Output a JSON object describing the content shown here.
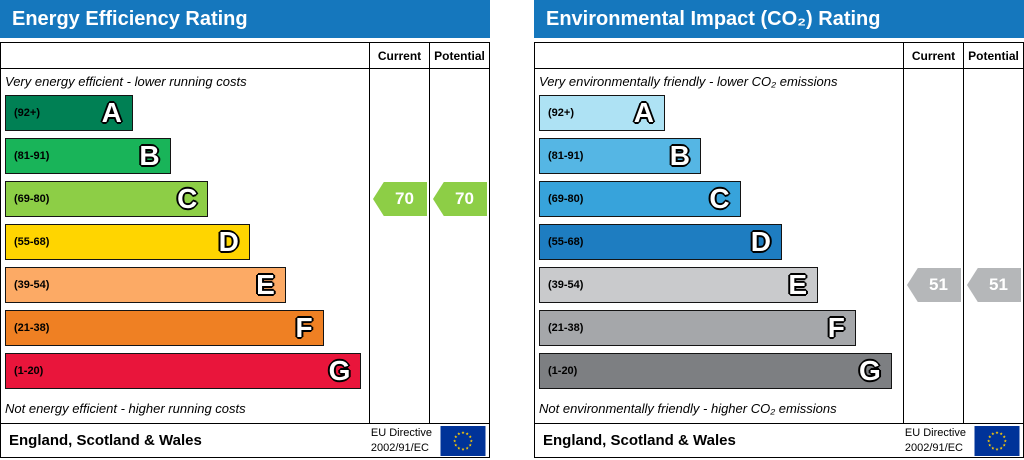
{
  "charts": [
    {
      "title": "Energy Efficiency Rating",
      "header_color": "#1577bd",
      "columns": {
        "current": "Current",
        "potential": "Potential"
      },
      "caption_top": "Very energy efficient - lower running costs",
      "caption_bottom": "Not energy efficient - higher running costs",
      "bands": [
        {
          "range": "(92+)",
          "letter": "A",
          "color": "#008054",
          "width_pct": 35.5
        },
        {
          "range": "(81-91)",
          "letter": "B",
          "color": "#19b459",
          "width_pct": 46
        },
        {
          "range": "(69-80)",
          "letter": "C",
          "color": "#8dce46",
          "width_pct": 56.5
        },
        {
          "range": "(55-68)",
          "letter": "D",
          "color": "#ffd500",
          "width_pct": 68
        },
        {
          "range": "(39-54)",
          "letter": "E",
          "color": "#fcaa65",
          "width_pct": 78
        },
        {
          "range": "(21-38)",
          "letter": "F",
          "color": "#ef8023",
          "width_pct": 88.5
        },
        {
          "range": "(1-20)",
          "letter": "G",
          "color": "#e9153b",
          "width_pct": 99
        }
      ],
      "current": {
        "value": "70",
        "band_index": 2,
        "color": "#8dce46"
      },
      "potential": {
        "value": "70",
        "band_index": 2,
        "color": "#8dce46"
      },
      "footer": {
        "region": "England, Scotland & Wales",
        "directive_line1": "EU Directive",
        "directive_line2": "2002/91/EC"
      }
    },
    {
      "title": "Environmental Impact (CO₂) Rating",
      "header_color": "#1577bd",
      "columns": {
        "current": "Current",
        "potential": "Potential"
      },
      "caption_top": "Very environmentally friendly - lower CO₂ emissions",
      "caption_bottom": "Not environmentally friendly - higher CO₂ emissions",
      "bands": [
        {
          "range": "(92+)",
          "letter": "A",
          "color": "#aee2f4",
          "width_pct": 35
        },
        {
          "range": "(81-91)",
          "letter": "B",
          "color": "#55b6e4",
          "width_pct": 45
        },
        {
          "range": "(69-80)",
          "letter": "C",
          "color": "#37a3db",
          "width_pct": 56
        },
        {
          "range": "(55-68)",
          "letter": "D",
          "color": "#1e7dc1",
          "width_pct": 67.5
        },
        {
          "range": "(39-54)",
          "letter": "E",
          "color": "#c9cacc",
          "width_pct": 77.5
        },
        {
          "range": "(21-38)",
          "letter": "F",
          "color": "#a5a7aa",
          "width_pct": 88
        },
        {
          "range": "(1-20)",
          "letter": "G",
          "color": "#7d7f82",
          "width_pct": 98
        }
      ],
      "current": {
        "value": "51",
        "band_index": 4,
        "color": "#b5b7b9"
      },
      "potential": {
        "value": "51",
        "band_index": 4,
        "color": "#b5b7b9"
      },
      "footer": {
        "region": "England, Scotland & Wales",
        "directive_line1": "EU Directive",
        "directive_line2": "2002/91/EC"
      }
    }
  ],
  "chart_data": [
    {
      "type": "bar",
      "title": "Energy Efficiency Rating",
      "categories": [
        "A (92+)",
        "B (81-91)",
        "C (69-80)",
        "D (55-68)",
        "E (39-54)",
        "F (21-38)",
        "G (1-20)"
      ],
      "value_range": [
        1,
        100
      ],
      "series": [
        {
          "name": "Current",
          "value": 70,
          "band": "C"
        },
        {
          "name": "Potential",
          "value": 70,
          "band": "C"
        }
      ],
      "annotation_top": "Very energy efficient - lower running costs",
      "annotation_bottom": "Not energy efficient - higher running costs",
      "region": "England, Scotland & Wales",
      "directive": "EU Directive 2002/91/EC"
    },
    {
      "type": "bar",
      "title": "Environmental Impact (CO₂) Rating",
      "categories": [
        "A (92+)",
        "B (81-91)",
        "C (69-80)",
        "D (55-68)",
        "E (39-54)",
        "F (21-38)",
        "G (1-20)"
      ],
      "value_range": [
        1,
        100
      ],
      "series": [
        {
          "name": "Current",
          "value": 51,
          "band": "E"
        },
        {
          "name": "Potential",
          "value": 51,
          "band": "E"
        }
      ],
      "annotation_top": "Very environmentally friendly - lower CO₂ emissions",
      "annotation_bottom": "Not environmentally friendly - higher CO₂ emissions",
      "region": "England, Scotland & Wales",
      "directive": "EU Directive 2002/91/EC"
    }
  ]
}
